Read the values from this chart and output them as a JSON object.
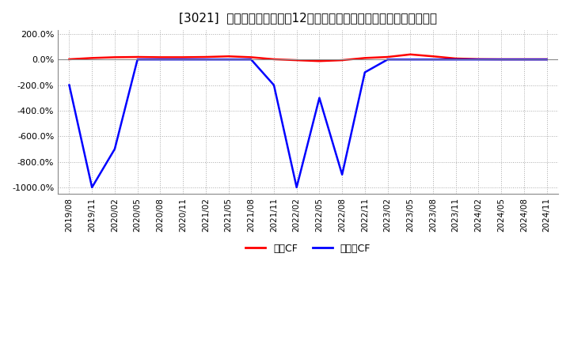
{
  "title": "[3021]  キャッシュフローの12か月移動合計の対前年同期増減率の推移",
  "title_fontsize": 11,
  "ylim": [
    -1050,
    230
  ],
  "yticks": [
    200,
    0,
    -200,
    -400,
    -600,
    -800,
    -1000
  ],
  "legend_labels": [
    "営業CF",
    "フリーCF"
  ],
  "legend_colors": [
    "red",
    "blue"
  ],
  "x_labels": [
    "2019/08",
    "2019/11",
    "2020/02",
    "2020/05",
    "2020/08",
    "2020/11",
    "2021/02",
    "2021/05",
    "2021/08",
    "2021/11",
    "2022/02",
    "2022/05",
    "2022/08",
    "2022/11",
    "2023/02",
    "2023/05",
    "2023/08",
    "2023/11",
    "2024/02",
    "2024/05",
    "2024/08",
    "2024/11"
  ],
  "operating_cf": [
    2,
    12,
    18,
    20,
    18,
    18,
    20,
    25,
    18,
    2,
    -5,
    -12,
    -5,
    12,
    20,
    40,
    25,
    8,
    3,
    2,
    2,
    2
  ],
  "free_cf": [
    -200,
    -1000,
    -700,
    0,
    0,
    0,
    0,
    0,
    0,
    -200,
    -1000,
    -300,
    -900,
    -100,
    0,
    0,
    0,
    0,
    0,
    0,
    0,
    0
  ],
  "bg_color": "#ffffff",
  "grid_color": "#aaaaaa",
  "line_width": 1.8
}
